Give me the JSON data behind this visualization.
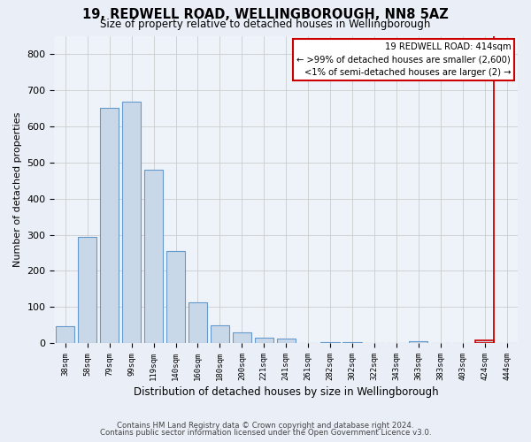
{
  "title": "19, REDWELL ROAD, WELLINGBOROUGH, NN8 5AZ",
  "subtitle": "Size of property relative to detached houses in Wellingborough",
  "xlabel": "Distribution of detached houses by size in Wellingborough",
  "ylabel": "Number of detached properties",
  "bar_labels": [
    "38sqm",
    "58sqm",
    "79sqm",
    "99sqm",
    "119sqm",
    "140sqm",
    "160sqm",
    "180sqm",
    "200sqm",
    "221sqm",
    "241sqm",
    "261sqm",
    "282sqm",
    "302sqm",
    "322sqm",
    "343sqm",
    "363sqm",
    "383sqm",
    "403sqm",
    "424sqm",
    "444sqm"
  ],
  "bar_values": [
    46,
    293,
    651,
    668,
    480,
    254,
    114,
    48,
    29,
    16,
    12,
    0,
    3,
    2,
    0,
    0,
    6,
    0,
    0,
    8,
    0
  ],
  "bar_color": "#c8d8e8",
  "bar_edge_color": "#6699cc",
  "highlight_bar_index": 19,
  "highlight_bar_edge_color": "#cc0000",
  "highlight_line_color": "#cc0000",
  "ylim": [
    0,
    850
  ],
  "yticks": [
    0,
    100,
    200,
    300,
    400,
    500,
    600,
    700,
    800
  ],
  "background_color": "#eaeff7",
  "plot_bg_color": "#eef2f9",
  "grid_color": "#cccccc",
  "title_fontsize": 10.5,
  "subtitle_fontsize": 8.5,
  "annotation_title": "19 REDWELL ROAD: 414sqm",
  "annotation_line1": "← >99% of detached houses are smaller (2,600)",
  "annotation_line2": "<1% of semi-detached houses are larger (2) →",
  "footnote1": "Contains HM Land Registry data © Crown copyright and database right 2024.",
  "footnote2": "Contains public sector information licensed under the Open Government Licence v3.0."
}
